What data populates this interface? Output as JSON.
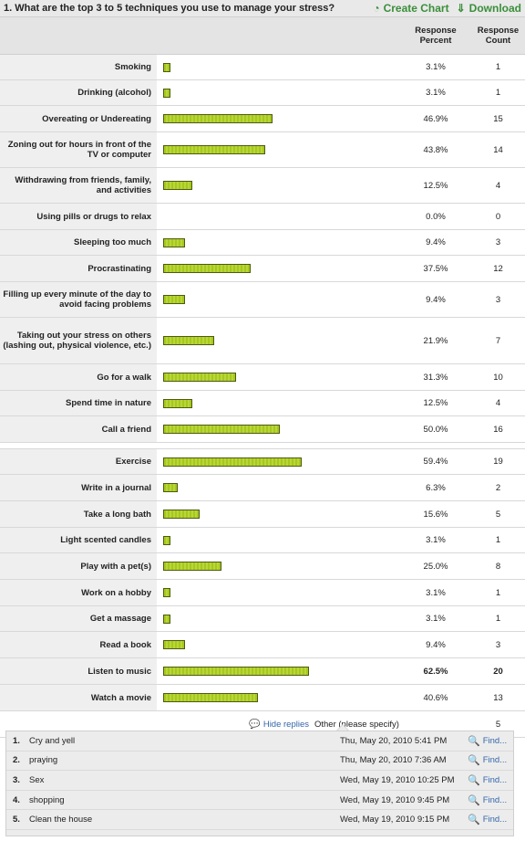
{
  "question": {
    "title": "1. What are the top 3 to 5 techniques you use to manage your stress?"
  },
  "actions": {
    "create_chart": "Create Chart",
    "download": "Download"
  },
  "columns": {
    "percent": "Response Percent",
    "count": "Response Count"
  },
  "colors": {
    "bar": "#a6c81c",
    "accent_link": "#3a8f3a",
    "reply_link": "#3366aa"
  },
  "rows": [
    {
      "label": "Smoking",
      "percent": "3.1%",
      "count": "1",
      "value": 3.1,
      "h": 27
    },
    {
      "label": "Drinking (alcohol)",
      "percent": "3.1%",
      "count": "1",
      "value": 3.1,
      "h": 27
    },
    {
      "label": "Overeating or Undereating",
      "percent": "46.9%",
      "count": "15",
      "value": 46.9,
      "h": 28
    },
    {
      "label": "Zoning out for hours in front of the TV or computer",
      "percent": "43.8%",
      "count": "14",
      "value": 43.8,
      "h": 38
    },
    {
      "label": "Withdrawing from friends, family, and activities",
      "percent": "12.5%",
      "count": "4",
      "value": 12.5,
      "h": 38
    },
    {
      "label": "Using pills or drugs to relax",
      "percent": "0.0%",
      "count": "0",
      "value": 0,
      "h": 28
    },
    {
      "label": "Sleeping too much",
      "percent": "9.4%",
      "count": "3",
      "value": 9.4,
      "h": 27
    },
    {
      "label": "Procrastinating",
      "percent": "37.5%",
      "count": "12",
      "value": 37.5,
      "h": 28
    },
    {
      "label": "Filling up every minute of the day to avoid facing problems",
      "percent": "9.4%",
      "count": "3",
      "value": 9.4,
      "h": 38
    },
    {
      "label": "Taking out your stress on others (lashing out, physical violence, etc.)",
      "percent": "21.9%",
      "count": "7",
      "value": 21.9,
      "h": 50
    },
    {
      "label": "Go for a walk",
      "percent": "31.3%",
      "count": "10",
      "value": 31.3,
      "h": 28
    },
    {
      "label": "Spend time in nature",
      "percent": "12.5%",
      "count": "4",
      "value": 12.5,
      "h": 27
    },
    {
      "label": "Call a friend",
      "percent": "50.0%",
      "count": "16",
      "value": 50.0,
      "h": 28
    }
  ],
  "rows2": [
    {
      "label": "Exercise",
      "percent": "59.4%",
      "count": "19",
      "value": 59.4,
      "h": 27
    },
    {
      "label": "Write in a journal",
      "percent": "6.3%",
      "count": "2",
      "value": 6.3,
      "h": 28
    },
    {
      "label": "Take a long bath",
      "percent": "15.6%",
      "count": "5",
      "value": 15.6,
      "h": 28
    },
    {
      "label": "Light scented candles",
      "percent": "3.1%",
      "count": "1",
      "value": 3.1,
      "h": 27
    },
    {
      "label": "Play with a pet(s)",
      "percent": "25.0%",
      "count": "8",
      "value": 25.0,
      "h": 28
    },
    {
      "label": "Work on a hobby",
      "percent": "3.1%",
      "count": "1",
      "value": 3.1,
      "h": 28
    },
    {
      "label": "Get a massage",
      "percent": "3.1%",
      "count": "1",
      "value": 3.1,
      "h": 27
    },
    {
      "label": "Read a book",
      "percent": "9.4%",
      "count": "3",
      "value": 9.4,
      "h": 28
    },
    {
      "label": "Listen to music",
      "percent": "62.5%",
      "count": "20",
      "value": 62.5,
      "h": 28,
      "bold": true
    },
    {
      "label": "Watch a movie",
      "percent": "40.6%",
      "count": "13",
      "value": 40.6,
      "h": 28
    }
  ],
  "other": {
    "hide_label": "Hide replies",
    "label": "Other (please specify)",
    "count": "5"
  },
  "replies": [
    {
      "n": "1.",
      "text": "Cry and yell",
      "date": "Thu, May 20, 2010 5:41 PM",
      "find": "Find..."
    },
    {
      "n": "2.",
      "text": "praying",
      "date": "Thu, May 20, 2010 7:36 AM",
      "find": "Find..."
    },
    {
      "n": "3.",
      "text": "Sex",
      "date": "Wed, May 19, 2010 10:25 PM",
      "find": "Find..."
    },
    {
      "n": "4.",
      "text": "shopping",
      "date": "Wed, May 19, 2010 9:45 PM",
      "find": "Find..."
    },
    {
      "n": "5.",
      "text": "Clean the house",
      "date": "Wed, May 19, 2010 9:15 PM",
      "find": "Find..."
    }
  ]
}
